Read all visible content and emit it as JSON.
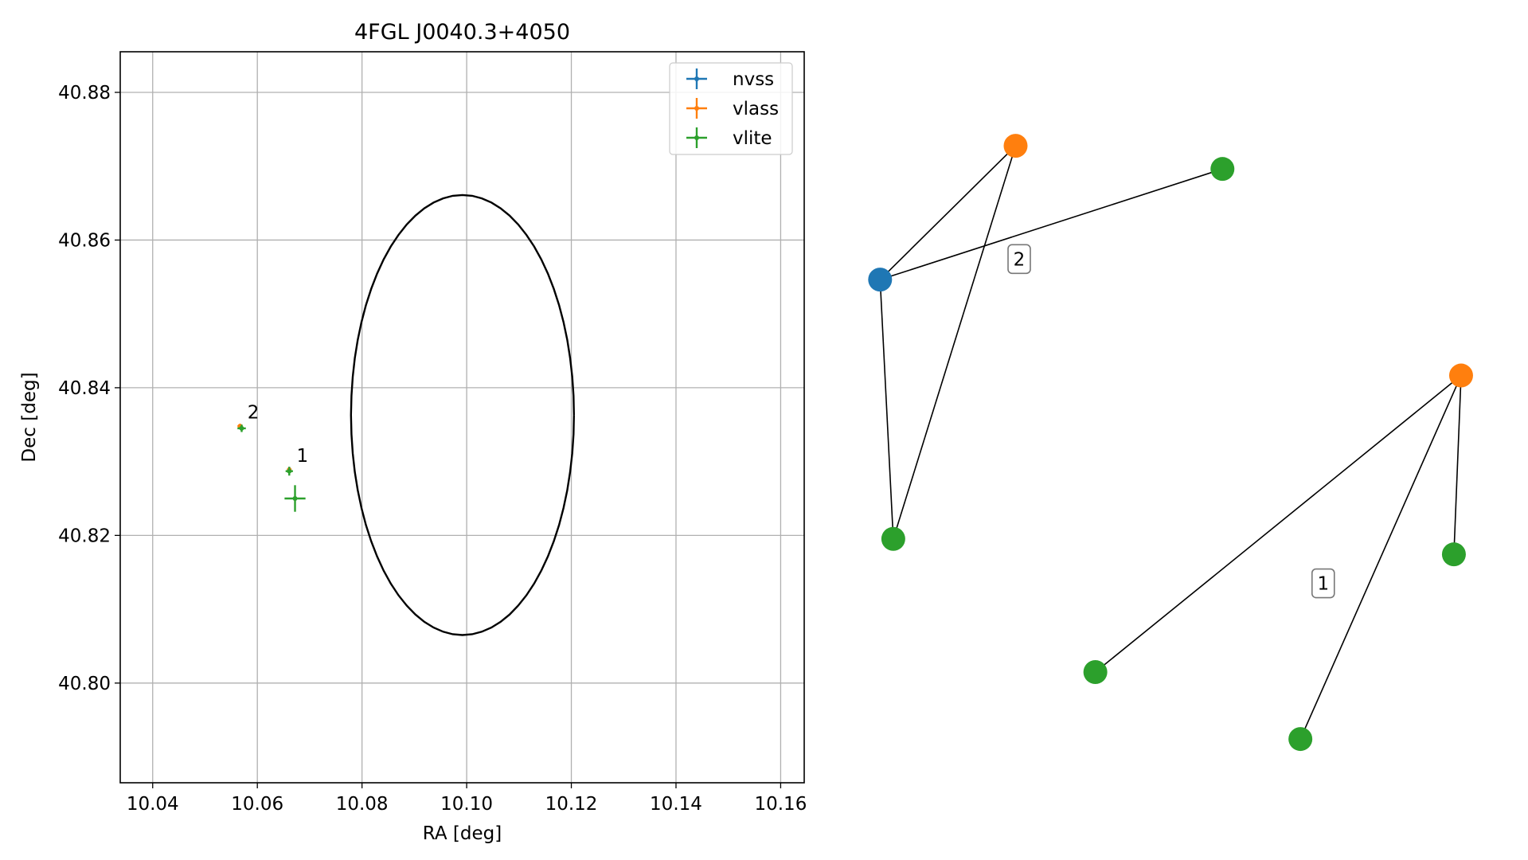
{
  "chart_data": [
    {
      "type": "scatter",
      "title": "4FGL J0040.3+4050",
      "xlabel": "RA [deg]",
      "ylabel": "Dec [deg]",
      "xlim": [
        10.0338,
        10.1645
      ],
      "ylim": [
        40.7865,
        40.8855
      ],
      "xticks": [
        "10.04",
        "10.06",
        "10.08",
        "10.10",
        "10.12",
        "10.14",
        "10.16"
      ],
      "xtick_values": [
        10.04,
        10.06,
        10.08,
        10.1,
        10.12,
        10.14,
        10.16
      ],
      "yticks": [
        "40.80",
        "40.82",
        "40.84",
        "40.86",
        "40.88"
      ],
      "ytick_values": [
        40.8,
        40.82,
        40.84,
        40.86,
        40.88
      ],
      "grid": true,
      "legend_position": "top-right",
      "colors": {
        "nvss": "#1f77b4",
        "vlass": "#ff7f0e",
        "vlite": "#2ca02c",
        "ellipse": "#000000"
      },
      "series": [
        {
          "name": "nvss",
          "color": "#1f77b4",
          "points": []
        },
        {
          "name": "vlass",
          "color": "#ff7f0e",
          "points": [
            {
              "x": 10.0567,
              "y": 40.8348,
              "xerr": 0.0005,
              "yerr": 0.0003
            },
            {
              "x": 10.0661,
              "y": 40.8289,
              "xerr": 0.0004,
              "yerr": 0.0003
            }
          ]
        },
        {
          "name": "vlite",
          "color": "#2ca02c",
          "points": [
            {
              "x": 10.057,
              "y": 40.8345,
              "xerr": 0.0008,
              "yerr": 0.0005
            },
            {
              "x": 10.0661,
              "y": 40.8287,
              "xerr": 0.0007,
              "yerr": 0.0006
            },
            {
              "x": 10.0672,
              "y": 40.825,
              "xerr": 0.002,
              "yerr": 0.0018
            }
          ]
        }
      ],
      "ellipse": {
        "center_ra": 10.0992,
        "center_dec": 40.8363,
        "semi_ra": 0.0213,
        "semi_dec": 0.0298,
        "angle_deg": 80
      },
      "annotations": [
        {
          "text": "2",
          "x": 10.0575,
          "y": 40.835
        },
        {
          "text": "1",
          "x": 10.0669,
          "y": 40.8291
        }
      ],
      "legend": [
        "nvss",
        "vlass",
        "vlite"
      ]
    },
    {
      "type": "network",
      "nodes": [
        {
          "id": "n1",
          "survey": "nvss",
          "color": "#1f77b4",
          "x": 0.019,
          "y": 0.73
        },
        {
          "id": "n2",
          "survey": "vlass",
          "color": "#ff7f0e",
          "x": 0.245,
          "y": 0.938
        },
        {
          "id": "n3",
          "survey": "vlite",
          "color": "#2ca02c",
          "x": 0.59,
          "y": 0.902
        },
        {
          "id": "n4",
          "survey": "vlite",
          "color": "#2ca02c",
          "x": 0.041,
          "y": 0.327
        },
        {
          "id": "n5",
          "survey": "vlass",
          "color": "#ff7f0e",
          "x": 0.988,
          "y": 0.581
        },
        {
          "id": "n6",
          "survey": "vlite",
          "color": "#2ca02c",
          "x": 0.976,
          "y": 0.303
        },
        {
          "id": "n7",
          "survey": "vlite",
          "color": "#2ca02c",
          "x": 0.378,
          "y": 0.12
        },
        {
          "id": "n8",
          "survey": "vlite",
          "color": "#2ca02c",
          "x": 0.72,
          "y": 0.016
        }
      ],
      "edges": [
        [
          "n1",
          "n2"
        ],
        [
          "n1",
          "n3"
        ],
        [
          "n1",
          "n4"
        ],
        [
          "n2",
          "n4"
        ],
        [
          "n5",
          "n6"
        ],
        [
          "n5",
          "n7"
        ],
        [
          "n5",
          "n8"
        ]
      ],
      "group_labels": [
        {
          "text": "2",
          "x": 0.251,
          "y": 0.762
        },
        {
          "text": "1",
          "x": 0.758,
          "y": 0.258
        }
      ]
    }
  ]
}
